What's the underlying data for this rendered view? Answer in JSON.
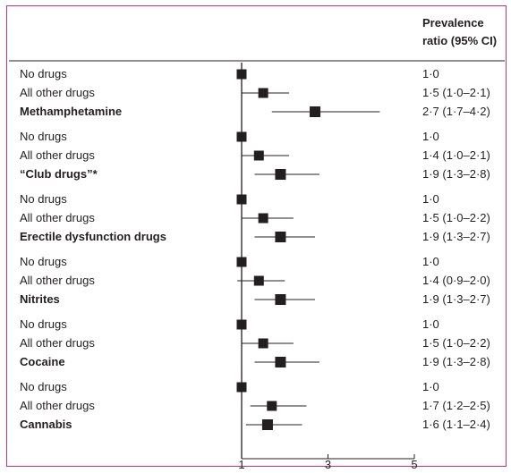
{
  "header": {
    "line1": "Prevalence",
    "line2": "ratio (95% CI)"
  },
  "chart_data": {
    "type": "forest",
    "title": "",
    "xlabel": "",
    "ylabel": "",
    "xlim": [
      1,
      5
    ],
    "x_ticks": [
      "1",
      "3",
      "5"
    ],
    "reference_line": 1,
    "groups": [
      {
        "rows": [
          {
            "label": "No drugs",
            "bold": false,
            "estimate": 1.0,
            "ci_low": null,
            "ci_high": null,
            "text": "1·0"
          },
          {
            "label": "All other drugs",
            "bold": false,
            "estimate": 1.5,
            "ci_low": 1.0,
            "ci_high": 2.1,
            "text": "1·5 (1·0–2·1)"
          },
          {
            "label": "Methamphetamine",
            "bold": true,
            "estimate": 2.7,
            "ci_low": 1.7,
            "ci_high": 4.2,
            "text": "2·7 (1·7–4·2)"
          }
        ]
      },
      {
        "rows": [
          {
            "label": "No drugs",
            "bold": false,
            "estimate": 1.0,
            "ci_low": null,
            "ci_high": null,
            "text": "1·0"
          },
          {
            "label": "All other drugs",
            "bold": false,
            "estimate": 1.4,
            "ci_low": 1.0,
            "ci_high": 2.1,
            "text": "1·4 (1·0–2·1)"
          },
          {
            "label": "“Club drugs”*",
            "bold": true,
            "estimate": 1.9,
            "ci_low": 1.3,
            "ci_high": 2.8,
            "text": "1·9 (1·3–2·8)"
          }
        ]
      },
      {
        "rows": [
          {
            "label": "No drugs",
            "bold": false,
            "estimate": 1.0,
            "ci_low": null,
            "ci_high": null,
            "text": "1·0"
          },
          {
            "label": "All other drugs",
            "bold": false,
            "estimate": 1.5,
            "ci_low": 1.0,
            "ci_high": 2.2,
            "text": "1·5 (1·0–2·2)"
          },
          {
            "label": "Erectile dysfunction drugs",
            "bold": true,
            "estimate": 1.9,
            "ci_low": 1.3,
            "ci_high": 2.7,
            "text": "1·9 (1·3–2·7)"
          }
        ]
      },
      {
        "rows": [
          {
            "label": "No drugs",
            "bold": false,
            "estimate": 1.0,
            "ci_low": null,
            "ci_high": null,
            "text": "1·0"
          },
          {
            "label": "All other drugs",
            "bold": false,
            "estimate": 1.4,
            "ci_low": 0.9,
            "ci_high": 2.0,
            "text": "1·4 (0·9–2·0)"
          },
          {
            "label": "Nitrites",
            "bold": true,
            "estimate": 1.9,
            "ci_low": 1.3,
            "ci_high": 2.7,
            "text": "1·9 (1·3–2·7)"
          }
        ]
      },
      {
        "rows": [
          {
            "label": "No drugs",
            "bold": false,
            "estimate": 1.0,
            "ci_low": null,
            "ci_high": null,
            "text": "1·0"
          },
          {
            "label": "All other drugs",
            "bold": false,
            "estimate": 1.5,
            "ci_low": 1.0,
            "ci_high": 2.2,
            "text": "1·5 (1·0–2·2)"
          },
          {
            "label": "Cocaine",
            "bold": true,
            "estimate": 1.9,
            "ci_low": 1.3,
            "ci_high": 2.8,
            "text": "1·9 (1·3–2·8)"
          }
        ]
      },
      {
        "rows": [
          {
            "label": "No drugs",
            "bold": false,
            "estimate": 1.0,
            "ci_low": null,
            "ci_high": null,
            "text": "1·0"
          },
          {
            "label": "All other drugs",
            "bold": false,
            "estimate": 1.7,
            "ci_low": 1.2,
            "ci_high": 2.5,
            "text": "1·7 (1·2–2·5)"
          },
          {
            "label": "Cannabis",
            "bold": true,
            "estimate": 1.6,
            "ci_low": 1.1,
            "ci_high": 2.4,
            "text": "1·6 (1·1–2·4)"
          }
        ]
      }
    ]
  },
  "colors": {
    "frame": "#c8327a",
    "ink": "#231f20"
  }
}
